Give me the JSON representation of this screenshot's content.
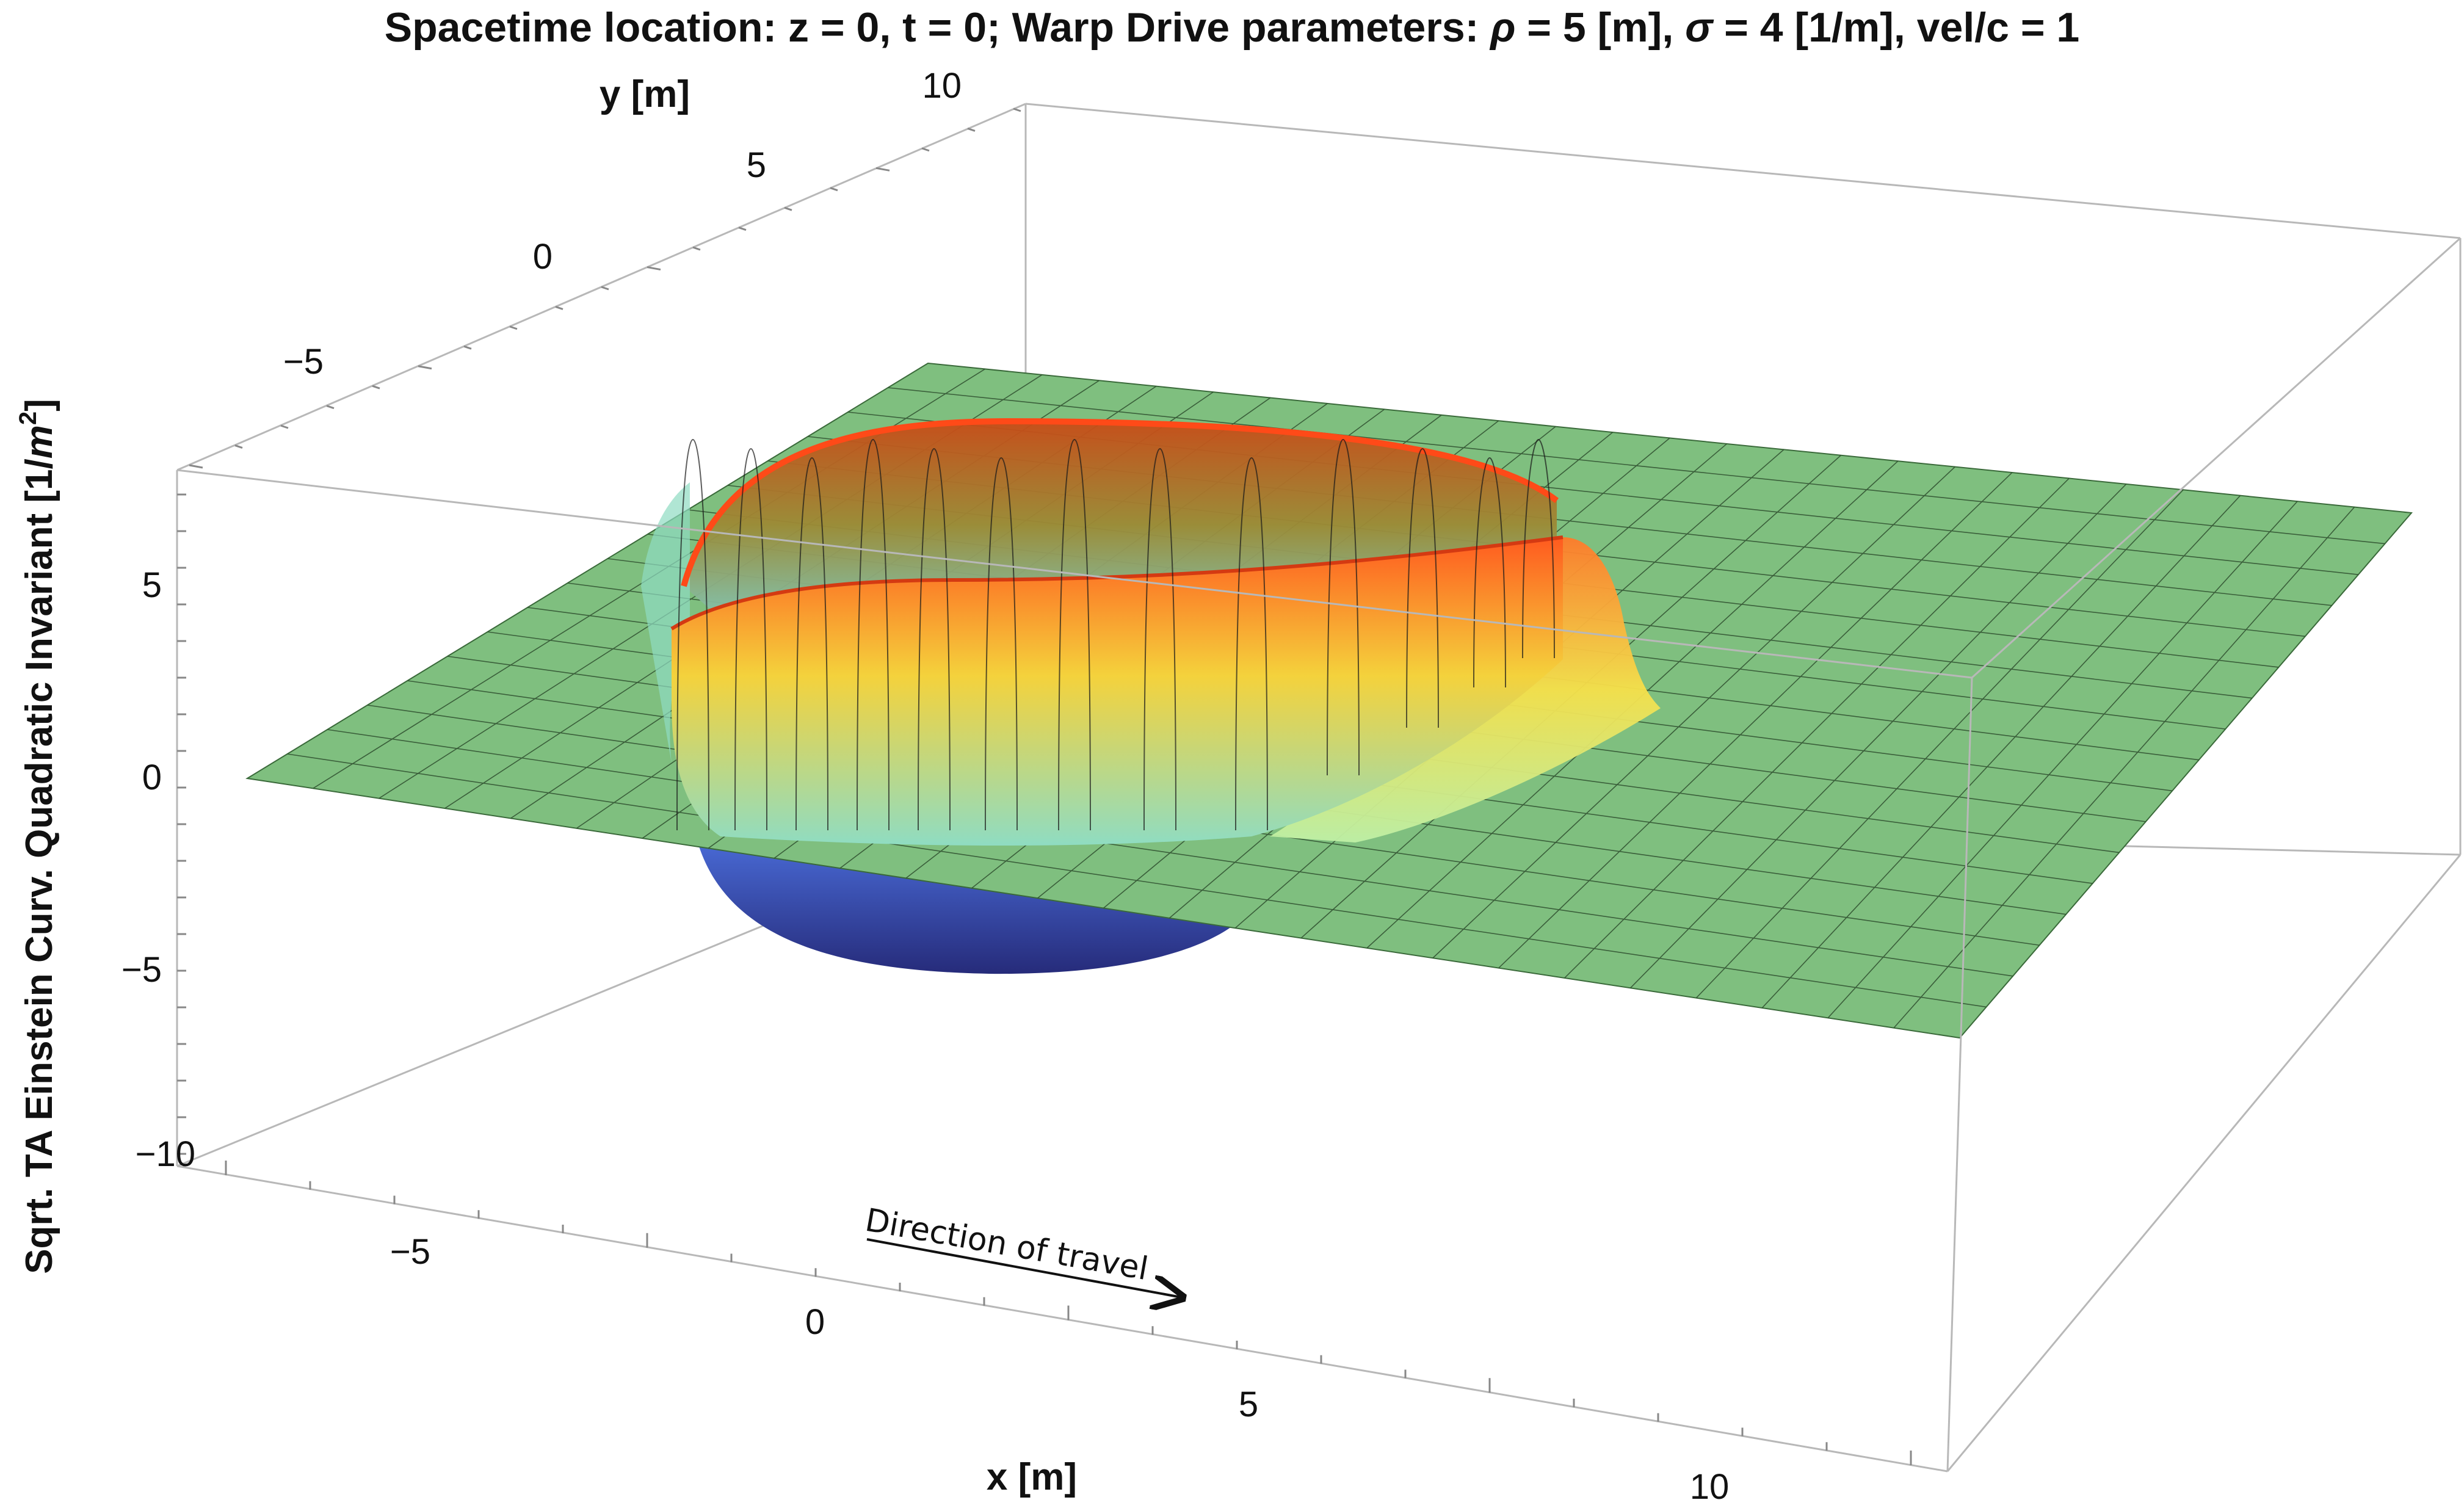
{
  "title": {
    "part1": "Spacetime location:  z = 0, t = 0;   Warp Drive parameters: ",
    "rho_sym": "ρ",
    "part2": " = 5 [m], ",
    "sigma_sym": "σ",
    "part3": " = 4 [1/m], vel/c = 1"
  },
  "chart_data": {
    "type": "surface3d",
    "x_axis": {
      "label": "x [m]",
      "ticks": [
        "−5",
        "0",
        "5",
        "10"
      ],
      "range": [
        -7,
        12
      ]
    },
    "y_axis": {
      "label": "y [m]",
      "ticks": [
        "−5",
        "0",
        "5",
        "10"
      ],
      "range": [
        -7,
        11
      ]
    },
    "z_axis": {
      "label_main": "Sqrt. TA Einstein Curv. Quadratic Invariant [1/",
      "label_m": "m",
      "label_exp": "2",
      "label_close": "]",
      "ticks": [
        "5",
        "0",
        "−5",
        "−10"
      ],
      "range": [
        -10,
        8
      ]
    },
    "surface": {
      "description_values": {
        "bubble_radius_rho": 5,
        "sigma": 4,
        "velocity_over_c": 1,
        "wall_peak": 7.5,
        "trough_min": -5
      },
      "colors": {
        "plane": "#7fbf7f",
        "grid_line": "#2f4f2f",
        "wall_top": "#ff5a1f",
        "wall_mid": "#f4d23c",
        "wall_low": "#8fdcc2",
        "trough_top": "#4a6cd8",
        "trough_bottom": "#262b7a"
      }
    },
    "annotation": {
      "text": "Direction of travel"
    },
    "grid": true,
    "box": true
  }
}
